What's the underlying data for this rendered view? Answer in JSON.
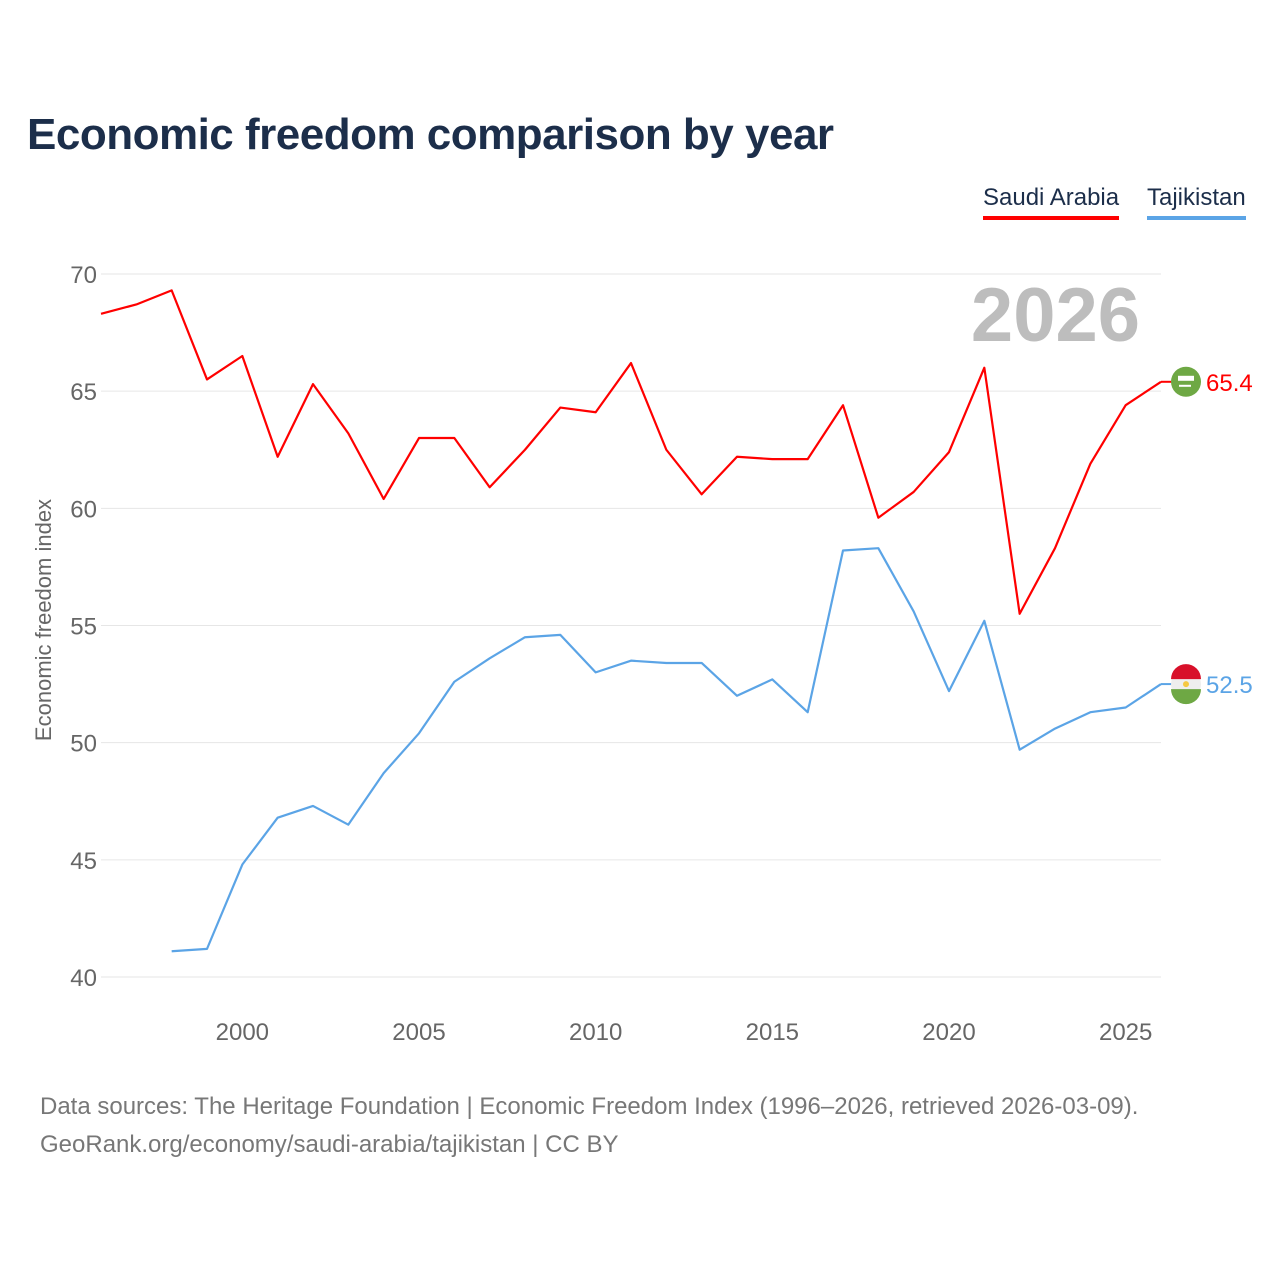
{
  "title": "Economic freedom comparison by year",
  "footer": {
    "line1": "Data sources: The Heritage Foundation | Economic Freedom Index (1996–2026, retrieved 2026-03-09).",
    "line2": "GeoRank.org/economy/saudi-arabia/tajikistan | CC BY"
  },
  "chart_data": {
    "type": "line",
    "title": "Economic freedom comparison by year",
    "xlabel": "",
    "ylabel": "Economic freedom index",
    "xlim": [
      1996,
      2026
    ],
    "ylim": [
      40,
      70
    ],
    "yticks": [
      40,
      45,
      50,
      55,
      60,
      65,
      70
    ],
    "xticks": [
      2000,
      2005,
      2010,
      2015,
      2020,
      2025
    ],
    "grid": true,
    "legend_position": "top-right",
    "year_watermark": "2026",
    "series": [
      {
        "name": "Saudi Arabia",
        "color": "#ff0000",
        "flag": "saudi-arabia-flag",
        "end_label": "65.4",
        "x": [
          1996,
          1997,
          1998,
          1999,
          2000,
          2001,
          2002,
          2003,
          2004,
          2005,
          2006,
          2007,
          2008,
          2009,
          2010,
          2011,
          2012,
          2013,
          2014,
          2015,
          2016,
          2017,
          2018,
          2019,
          2020,
          2021,
          2022,
          2023,
          2024,
          2025,
          2026
        ],
        "values": [
          68.3,
          68.7,
          69.3,
          65.5,
          66.5,
          62.2,
          65.3,
          63.2,
          60.4,
          63.0,
          63.0,
          60.9,
          62.5,
          64.3,
          64.1,
          66.2,
          62.5,
          60.6,
          62.2,
          62.1,
          62.1,
          64.4,
          59.6,
          60.7,
          62.4,
          66.0,
          55.5,
          58.3,
          61.9,
          64.4,
          65.4
        ]
      },
      {
        "name": "Tajikistan",
        "color": "#5ba4e6",
        "flag": "tajikistan-flag",
        "end_label": "52.5",
        "x": [
          1998,
          1999,
          2000,
          2001,
          2002,
          2003,
          2004,
          2005,
          2006,
          2007,
          2008,
          2009,
          2010,
          2011,
          2012,
          2013,
          2014,
          2015,
          2016,
          2017,
          2018,
          2019,
          2020,
          2021,
          2022,
          2023,
          2024,
          2025,
          2026
        ],
        "values": [
          41.1,
          41.2,
          44.8,
          46.8,
          47.3,
          46.5,
          48.7,
          50.4,
          52.6,
          53.6,
          54.5,
          54.6,
          53.0,
          53.5,
          53.4,
          53.4,
          52.0,
          52.7,
          51.3,
          58.2,
          58.3,
          55.6,
          52.2,
          55.2,
          49.7,
          50.6,
          51.3,
          51.5,
          52.5
        ]
      }
    ]
  }
}
